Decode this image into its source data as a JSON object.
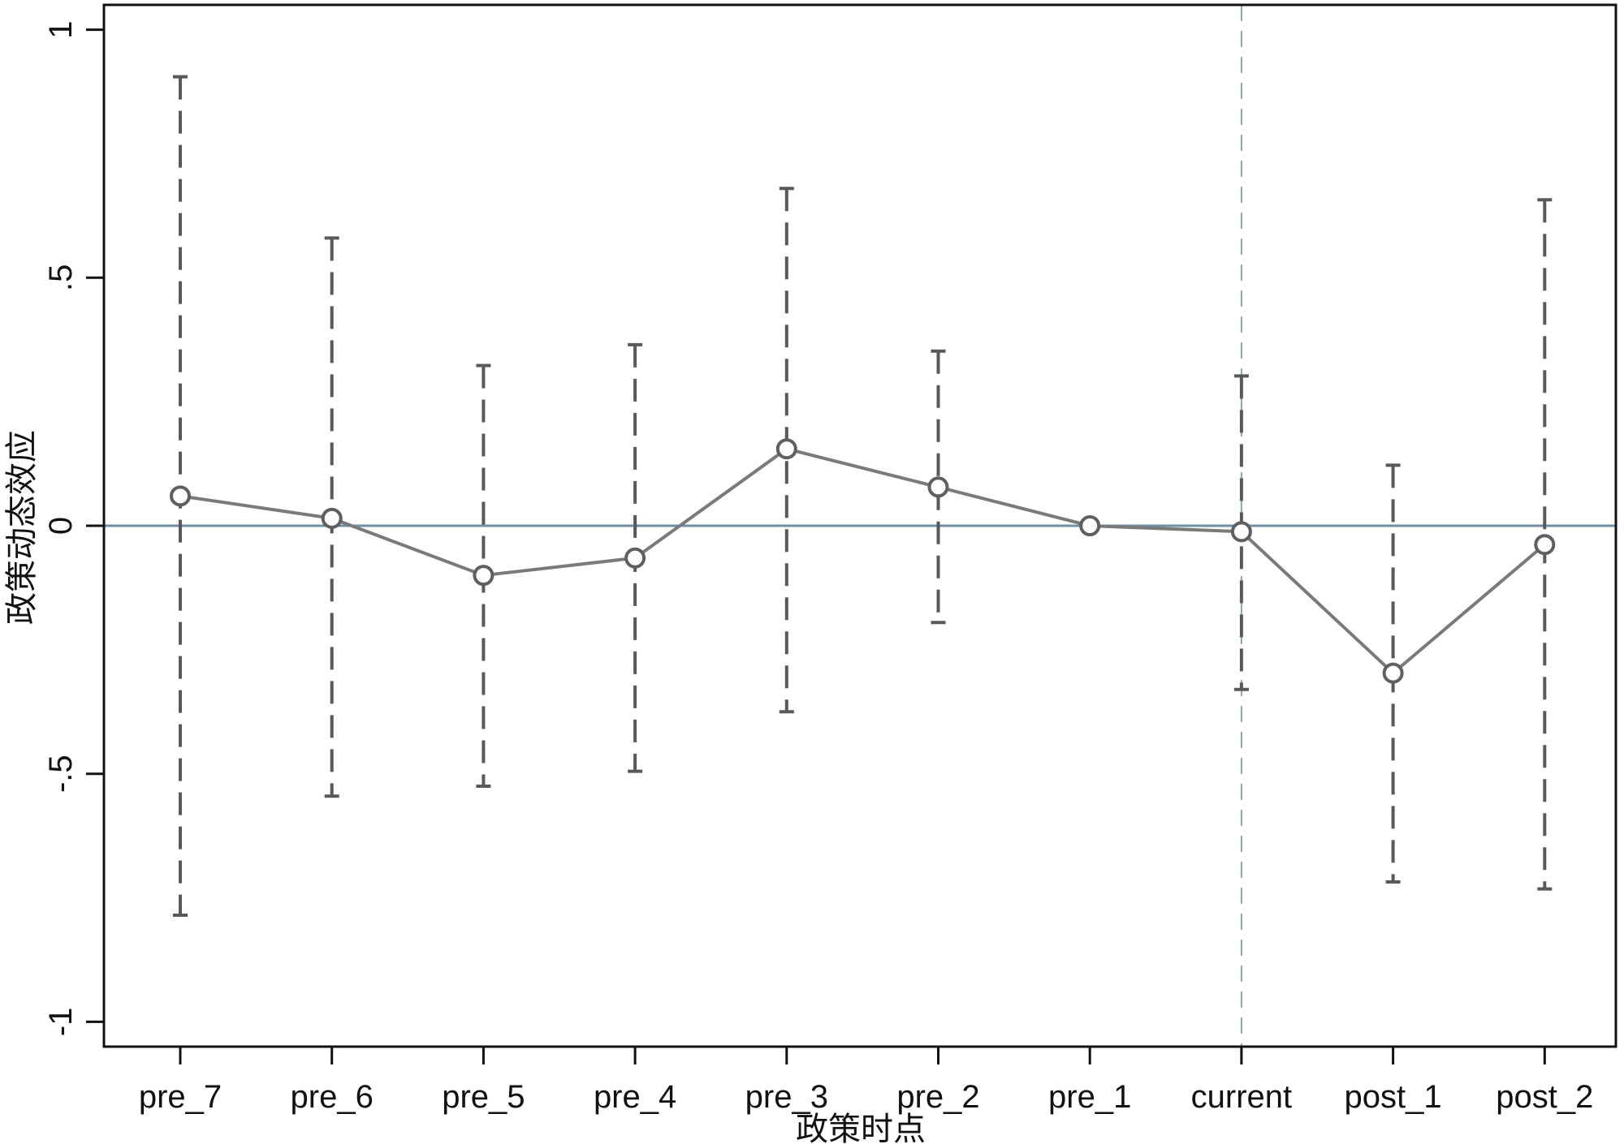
{
  "chart_data": {
    "type": "line",
    "title": "",
    "xlabel": "政策时点",
    "ylabel": "政策动态效应",
    "categories": [
      "pre_7",
      "pre_6",
      "pre_5",
      "pre_4",
      "pre_3",
      "pre_2",
      "pre_1",
      "current",
      "post_1",
      "post_2"
    ],
    "series": [
      {
        "values": [
          0.06,
          0.015,
          -0.1,
          -0.065,
          0.155,
          0.078,
          0.0,
          -0.012,
          -0.297,
          -0.038
        ],
        "ci_lower": [
          -0.785,
          -0.545,
          -0.525,
          -0.495,
          -0.375,
          -0.195,
          null,
          -0.33,
          -0.718,
          -0.732
        ],
        "ci_upper": [
          0.905,
          0.58,
          0.323,
          0.365,
          0.68,
          0.352,
          null,
          0.302,
          0.122,
          0.657
        ]
      }
    ],
    "ylim": [
      -1.05,
      1.05
    ],
    "yticks": [
      1,
      0.5,
      0,
      -0.5,
      -1
    ],
    "ytick_labels": [
      "1",
      ".5",
      "0",
      "-.5",
      "-1"
    ],
    "reference_lines": {
      "horizontal_y": 0,
      "vertical_at_category": "current"
    },
    "grid": false,
    "legend": "none",
    "colors": {
      "series_line": "#7a7a7a",
      "marker": "#5f5f5f",
      "error_bars": "#595959",
      "zero_line": "#6f8fa6",
      "vertical_ref_line": "#8aa9a0",
      "axis": "#111111"
    }
  }
}
